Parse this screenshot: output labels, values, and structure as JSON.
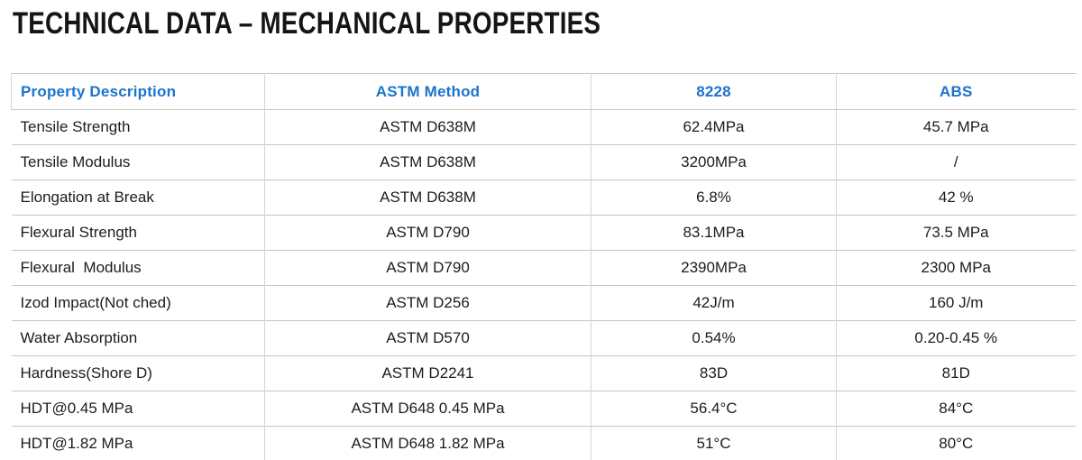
{
  "page_title": "TECHNICAL DATA – MECHANICAL PROPERTIES",
  "colors": {
    "header_text": "#1b74cc",
    "grid_horizontal": "#c6c6c6",
    "grid_vertical": "#d6d6d6",
    "body_text": "#1c1c1c"
  },
  "table": {
    "columns": [
      "Property Description",
      "ASTM Method",
      "8228",
      "ABS"
    ],
    "rows": [
      [
        "Tensile Strength",
        "ASTM D638M",
        "62.4MPa",
        "45.7 MPa"
      ],
      [
        "Tensile Modulus",
        "ASTM D638M",
        "3200MPa",
        "/"
      ],
      [
        "Elongation at Break",
        "ASTM D638M",
        "6.8%",
        "42 %"
      ],
      [
        "Flexural Strength",
        "ASTM D790",
        "83.1MPa",
        "73.5 MPa"
      ],
      [
        "Flexural  Modulus",
        "ASTM D790",
        "2390MPa",
        "2300 MPa"
      ],
      [
        "Izod Impact(Not ched)",
        "ASTM D256",
        "42J/m",
        "160 J/m"
      ],
      [
        "Water Absorption",
        "ASTM D570",
        "0.54%",
        "0.20-0.45 %"
      ],
      [
        "Hardness(Shore D)",
        "ASTM D2241",
        "83D",
        "81D"
      ],
      [
        "HDT@0.45 MPa",
        "ASTM D648 0.45 MPa",
        "56.4°C",
        "84°C"
      ],
      [
        "HDT@1.82 MPa",
        "ASTM D648 1.82 MPa",
        "51°C",
        "80°C"
      ]
    ]
  }
}
